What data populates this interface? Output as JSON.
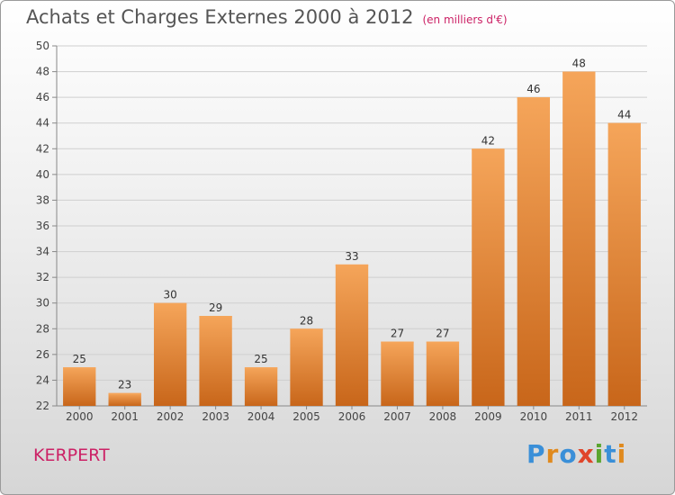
{
  "title": "Achats et Charges Externes 2000 à 2012",
  "unit": "(en milliers d'€)",
  "place": "KERPERT",
  "logo": {
    "text": "Proxiti",
    "letters": [
      "P",
      "r",
      "o",
      "x",
      "i",
      "t",
      "i"
    ],
    "colors": [
      "#3a8fd8",
      "#e08a1e",
      "#3a8fd8",
      "#e0452a",
      "#5aa52e",
      "#3a8fd8",
      "#e08a1e"
    ]
  },
  "colors": {
    "bar_light": "#f5a55a",
    "bar_dark": "#c8661a",
    "grid": "#cfcfcf",
    "title": "#555555",
    "accent": "#cc2266"
  },
  "chart_data": {
    "type": "bar",
    "categories": [
      "2000",
      "2001",
      "2002",
      "2003",
      "2004",
      "2005",
      "2006",
      "2007",
      "2008",
      "2009",
      "2010",
      "2011",
      "2012"
    ],
    "values": [
      25,
      23,
      30,
      29,
      25,
      28,
      33,
      27,
      27,
      42,
      46,
      48,
      44
    ],
    "ylim": [
      22,
      50
    ],
    "yticks": [
      22,
      24,
      26,
      28,
      30,
      32,
      34,
      36,
      38,
      40,
      42,
      44,
      46,
      48,
      50
    ],
    "grid": true
  }
}
